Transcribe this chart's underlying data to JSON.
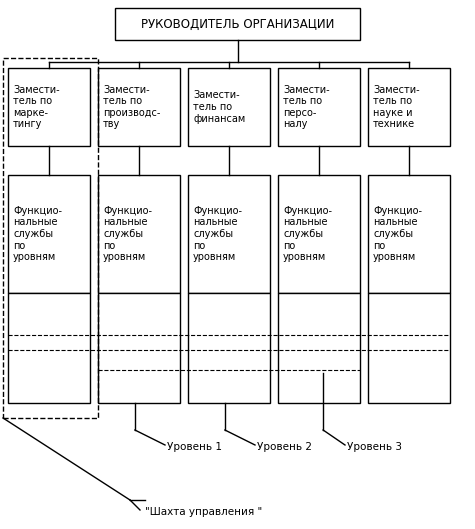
{
  "title": "РУКОВОДИТЕЛЬ ОРГАНИЗАЦИИ",
  "dep_texts": [
    "Замести-\nтель по\nмарке-\nтингу",
    "Замести-\nтель по\nпроизводс-\nтву",
    "Замести-\nтель по\nфинансам",
    "Замести-\nтель по\nперсо-\nналу",
    "Замести-\nтель по\nнауке и\nтехнике"
  ],
  "functional": "Функцио-\nнальные\nслужбы\nпо\nуровням",
  "level_labels": [
    "Уровень 1",
    "Уровень 2",
    "Уровень 3"
  ],
  "shakhta_label": "«Шахта управления »",
  "bg_color": "#ffffff",
  "fontsize": 7.0,
  "title_fontsize": 8.5
}
